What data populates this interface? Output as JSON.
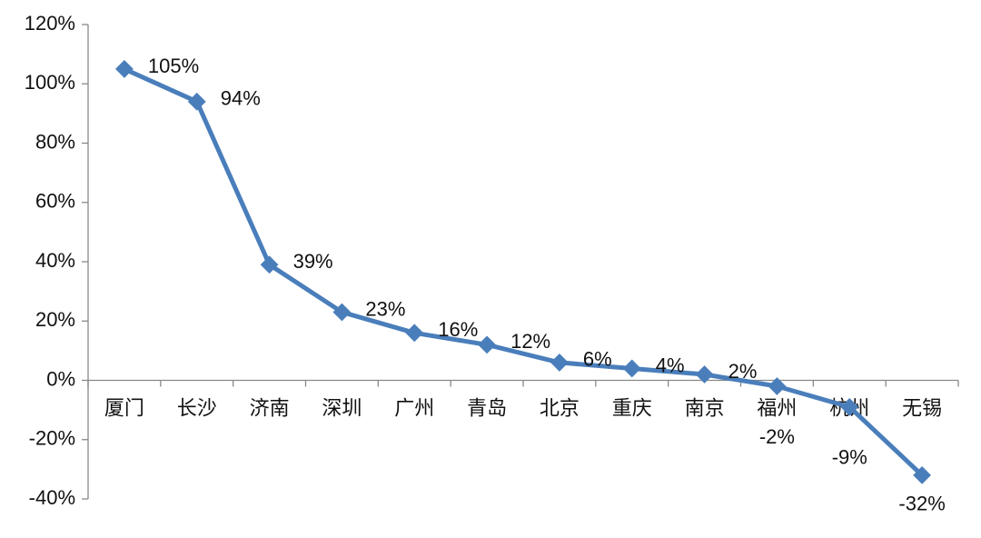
{
  "chart_data": {
    "type": "line",
    "categories": [
      "厦门",
      "长沙",
      "济南",
      "深圳",
      "广州",
      "青岛",
      "北京",
      "重庆",
      "南京",
      "福州",
      "杭州",
      "无锡"
    ],
    "series": [
      {
        "color": "#4a7ebb",
        "values": [
          105,
          94,
          39,
          23,
          16,
          12,
          6,
          4,
          2,
          -2,
          -9,
          -32
        ],
        "value_labels": [
          "105%",
          "94%",
          "39%",
          "23%",
          "16%",
          "12%",
          "6%",
          "4%",
          "2%",
          "-2%",
          "-9%",
          "-32%"
        ]
      }
    ],
    "ylim": [
      -40,
      120
    ],
    "yticks": [
      {
        "value": -40,
        "label": "-40%"
      },
      {
        "value": -20,
        "label": "-20%"
      },
      {
        "value": 0,
        "label": "0%"
      },
      {
        "value": 20,
        "label": "20%"
      },
      {
        "value": 40,
        "label": "40%"
      },
      {
        "value": 60,
        "label": "60%"
      },
      {
        "value": 80,
        "label": "80%"
      },
      {
        "value": 100,
        "label": "100%"
      },
      {
        "value": 120,
        "label": "120%"
      }
    ]
  }
}
